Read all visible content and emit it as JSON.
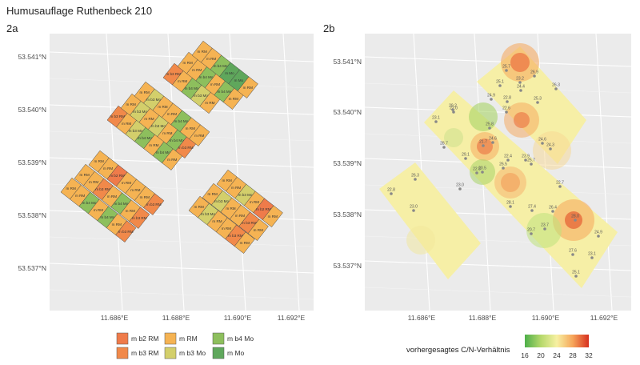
{
  "title": "Humusauflage Ruthenbeck 210",
  "chart_data": [
    {
      "panel": "2a",
      "type": "map",
      "x_ticks": [
        "11.686°E",
        "11.688°E",
        "11.690°E",
        "11.692°E"
      ],
      "y_ticks": [
        "53.541°N",
        "53.540°N",
        "53.539°N",
        "53.538°N",
        "53.537°N"
      ],
      "legend": [
        {
          "label": "m b2 RM",
          "color": "#ef7b4a"
        },
        {
          "label": "m b3 RM",
          "color": "#f1894a"
        },
        {
          "label": "m RM",
          "color": "#f5b353"
        },
        {
          "label": "m b3 Mo",
          "color": "#d3cf6b"
        },
        {
          "label": "m b4 Mo",
          "color": "#8dbf5d"
        },
        {
          "label": "m Mo",
          "color": "#5fa75c"
        }
      ],
      "strips": [
        {
          "cells": [
            {
              "label": "m RM",
              "cls": "rm"
            },
            {
              "label": "m RM",
              "cls": "rm"
            },
            {
              "label": "m b4 Mo",
              "cls": "b4mo"
            },
            {
              "label": "m RM",
              "cls": "rm"
            },
            {
              "label": "m b4 Mo",
              "cls": "b4mo"
            },
            {
              "label": "m RM",
              "cls": "rm"
            },
            {
              "label": "m b3 RM",
              "cls": "b3rm"
            }
          ]
        },
        {
          "cells": [
            {
              "label": "m RM",
              "cls": "rm"
            },
            {
              "label": "m RM",
              "cls": "rm"
            },
            {
              "label": "m b3 RM",
              "cls": "b3rm"
            },
            {
              "label": "m RM",
              "cls": "rm"
            },
            {
              "label": "m b4 Mo",
              "cls": "b4mo"
            },
            {
              "label": "m RM",
              "cls": "rm"
            },
            {
              "label": "m b3 RM",
              "cls": "b3rm"
            }
          ]
        },
        {
          "cells": [
            {
              "label": "m RM",
              "cls": "rm"
            },
            {
              "label": "m RM",
              "cls": "rm"
            },
            {
              "label": "m b2 RM",
              "cls": "b2rm"
            },
            {
              "label": "m RM",
              "cls": "rm"
            },
            {
              "label": "m RM",
              "cls": "rm"
            },
            {
              "label": "m RM",
              "cls": "rm"
            },
            {
              "label": "m b3 RM",
              "cls": "b3rm"
            }
          ]
        },
        {
          "cells": [
            {
              "label": "m b3 RM",
              "cls": "b3rm"
            },
            {
              "label": "m RM",
              "cls": "rm"
            },
            {
              "label": "m b3 Mo",
              "cls": "b3mo"
            },
            {
              "label": "m b4 Mo",
              "cls": "b4mo"
            },
            {
              "label": "m RM",
              "cls": "rm"
            },
            {
              "label": "m b4 Mo",
              "cls": "b4mo"
            },
            {
              "label": "m RM",
              "cls": "rm"
            }
          ]
        },
        {
          "cells": [
            {
              "label": "m RM",
              "cls": "rm"
            },
            {
              "label": "m b3 Mo",
              "cls": "b3mo"
            },
            {
              "label": "m RM",
              "cls": "rm"
            },
            {
              "label": "m b3 Mo",
              "cls": "b3mo"
            },
            {
              "label": "m RM",
              "cls": "rm"
            },
            {
              "label": "m b4 Mo",
              "cls": "b4mo"
            },
            {
              "label": "m b3 RM",
              "cls": "b3rm"
            }
          ]
        },
        {
          "cells": [
            {
              "label": "m RM",
              "cls": "rm"
            },
            {
              "label": "m b3 Mo",
              "cls": "b3mo"
            },
            {
              "label": "m RM",
              "cls": "rm"
            },
            {
              "label": "m RM",
              "cls": "rm"
            },
            {
              "label": "m b4 Mo",
              "cls": "b4mo"
            },
            {
              "label": "m RM",
              "cls": "rm"
            },
            {
              "label": "m RM",
              "cls": "rm"
            }
          ]
        },
        {
          "cells": [
            {
              "label": "m b3 RM",
              "cls": "b3rm"
            },
            {
              "label": "m RM",
              "cls": "rm"
            },
            {
              "label": "m b4 Mo",
              "cls": "b4mo"
            },
            {
              "label": "m b3 Mo",
              "cls": "b3mo"
            },
            {
              "label": "m RM",
              "cls": "rm"
            }
          ]
        },
        {
          "cells": [
            {
              "label": "m RM",
              "cls": "rm"
            },
            {
              "label": "m RM",
              "cls": "rm"
            },
            {
              "label": "m b4 Mo",
              "cls": "b4mo"
            },
            {
              "label": "m RM",
              "cls": "rm"
            },
            {
              "label": "m b4 Mo",
              "cls": "b4mo"
            },
            {
              "label": "m RM",
              "cls": "rm"
            }
          ]
        },
        {
          "cells": [
            {
              "label": "m RM",
              "cls": "rm"
            },
            {
              "label": "m RM",
              "cls": "rm"
            },
            {
              "label": "m b4 Mo",
              "cls": "b4mo"
            },
            {
              "label": "m Mo",
              "cls": "mo"
            },
            {
              "label": "m Mo",
              "cls": "mo"
            },
            {
              "label": "m RM",
              "cls": "rm"
            }
          ]
        },
        {
          "cells": [
            {
              "label": "m RM",
              "cls": "rm"
            },
            {
              "label": "m b3 Mo",
              "cls": "b3mo"
            },
            {
              "label": "m RM",
              "cls": "rm"
            },
            {
              "label": "m RM",
              "cls": "rm"
            },
            {
              "label": "m b3 RM",
              "cls": "b3rm"
            },
            {
              "label": "m RM",
              "cls": "rm"
            }
          ]
        },
        {
          "cells": [
            {
              "label": "m RM",
              "cls": "rm"
            },
            {
              "label": "m b3 Mo",
              "cls": "b3mo"
            },
            {
              "label": "m RM",
              "cls": "rm"
            },
            {
              "label": "m RM",
              "cls": "rm"
            },
            {
              "label": "m b3 RM",
              "cls": "b3rm"
            },
            {
              "label": "m RM",
              "cls": "rm"
            }
          ]
        },
        {
          "cells": [
            {
              "label": "m RM",
              "cls": "rm"
            },
            {
              "label": "m RM",
              "cls": "rm"
            },
            {
              "label": "m b3 Mo",
              "cls": "b3mo"
            },
            {
              "label": "m RM",
              "cls": "rm"
            },
            {
              "label": "m b2 RM",
              "cls": "b2rm"
            },
            {
              "label": "m RM",
              "cls": "rm"
            }
          ]
        }
      ]
    },
    {
      "panel": "2b",
      "type": "heatmap",
      "x_ticks": [
        "11.686°E",
        "11.688°E",
        "11.690°E",
        "11.692°E"
      ],
      "y_ticks": [
        "53.541°N",
        "53.540°N",
        "53.539°N",
        "53.538°N",
        "53.537°N"
      ],
      "colorbar": {
        "title": "vorhergesagtes C/N-Verhältnis",
        "ticks": [
          "16",
          "20",
          "24",
          "28",
          "32"
        ],
        "range": [
          16,
          32
        ]
      },
      "point_labels": [
        "25.7",
        "23.2",
        "26.9",
        "24.9",
        "25.1",
        "22.8",
        "24.4",
        "25.3",
        "26.3",
        "22.0",
        "22.6",
        "25.8",
        "29.2",
        "24.6",
        "23.1",
        "22.4",
        "23.9",
        "28.7",
        "21.7",
        "29.1",
        "26.5",
        "25.7",
        "24.3",
        "22.8",
        "23.0",
        "20.5",
        "24.6",
        "22.7",
        "26.3",
        "22.8",
        "23.0",
        "28.1",
        "27.4",
        "26.4",
        "28.0",
        "23.7",
        "24.9",
        "20.7",
        "27.6",
        "23.1",
        "25.1"
      ]
    }
  ]
}
